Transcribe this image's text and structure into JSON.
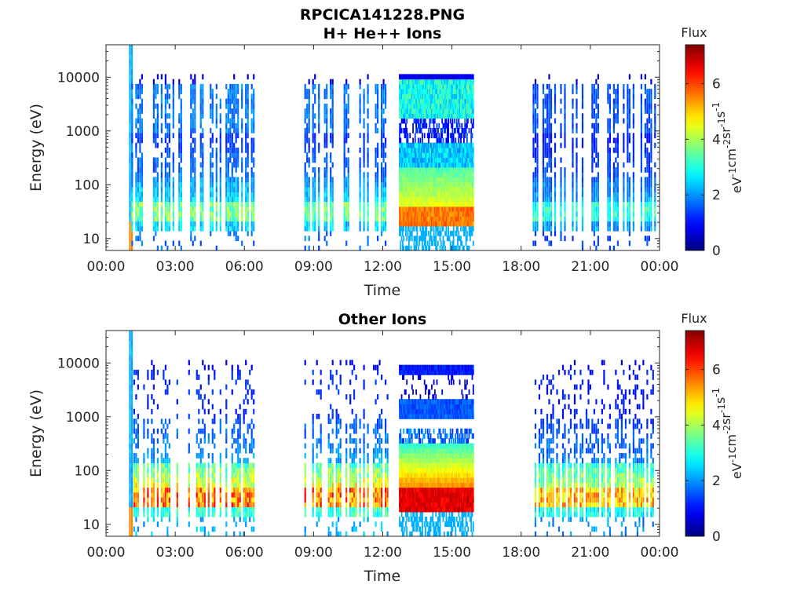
{
  "figure": {
    "title": "RPCICA141228.PNG"
  },
  "chart_data": [
    {
      "type": "heatmap",
      "title": "H+ He++ Ions",
      "xlabel": "Time",
      "ylabel": "Energy (eV)",
      "x_ticks": [
        "00:00",
        "03:00",
        "06:00",
        "09:00",
        "12:00",
        "15:00",
        "18:00",
        "21:00",
        "00:00"
      ],
      "x_range_hours": [
        0,
        24
      ],
      "y_scale": "log",
      "y_ticks": [
        "10",
        "100",
        "1000",
        "10000"
      ],
      "y_range": [
        6,
        40000
      ],
      "colorbar": {
        "title": "Flux",
        "label": "eV-1cm-2sr-1s-1",
        "ticks": [
          "0",
          "2",
          "4",
          "6"
        ],
        "range": [
          0,
          7.4
        ],
        "colormap": "jet"
      },
      "segments": [
        {
          "start_hour": 1.0,
          "end_hour": 1.1,
          "intensity": 3.0,
          "note": "spike"
        },
        {
          "start_hour": 1.1,
          "end_hour": 6.4,
          "intensity": 0.75
        },
        {
          "start_hour": 8.6,
          "end_hour": 12.2,
          "intensity": 0.72
        },
        {
          "start_hour": 12.7,
          "end_hour": 15.9,
          "intensity": 1.0
        },
        {
          "start_hour": 18.5,
          "end_hour": 23.9,
          "intensity": 0.62
        }
      ],
      "colors": {
        "axis": "#262626",
        "max": "#7f0000",
        "min": "#00008f"
      }
    },
    {
      "type": "heatmap",
      "title": "Other Ions",
      "xlabel": "Time",
      "ylabel": "Energy (eV)",
      "x_ticks": [
        "00:00",
        "03:00",
        "06:00",
        "09:00",
        "12:00",
        "15:00",
        "18:00",
        "21:00",
        "00:00"
      ],
      "x_range_hours": [
        0,
        24
      ],
      "y_scale": "log",
      "y_ticks": [
        "10",
        "100",
        "1000",
        "10000"
      ],
      "y_range": [
        6,
        40000
      ],
      "colorbar": {
        "title": "Flux",
        "label": "eV-1cm-2sr-1s-1",
        "ticks": [
          "0",
          "2",
          "4",
          "6"
        ],
        "range": [
          0,
          7.4
        ],
        "colormap": "jet"
      },
      "segments": [
        {
          "start_hour": 1.0,
          "end_hour": 1.1,
          "intensity": 3.0,
          "note": "spike"
        },
        {
          "start_hour": 1.1,
          "end_hour": 6.4,
          "intensity": 0.95
        },
        {
          "start_hour": 8.6,
          "end_hour": 12.2,
          "intensity": 0.95
        },
        {
          "start_hour": 12.7,
          "end_hour": 15.9,
          "intensity": 1.0
        },
        {
          "start_hour": 18.5,
          "end_hour": 23.9,
          "intensity": 0.85
        }
      ],
      "colors": {
        "axis": "#262626",
        "max": "#7f0000",
        "min": "#00008f"
      }
    }
  ]
}
